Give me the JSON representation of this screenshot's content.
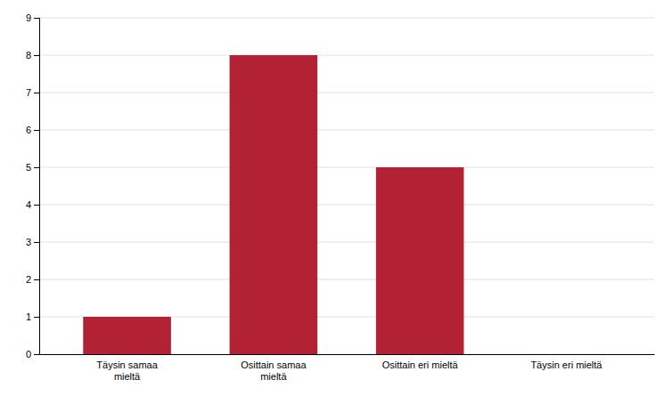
{
  "chart_data": {
    "type": "bar",
    "categories": [
      "Täysin samaa\nmieltä",
      "Osittain samaa\nmieltä",
      "Osittain eri mieltä",
      "Täysin eri mieltä"
    ],
    "values": [
      1,
      8,
      5,
      0
    ],
    "color": "#B22234",
    "ylim": [
      0,
      9
    ],
    "yticks": [
      0,
      1,
      2,
      3,
      4,
      5,
      6,
      7,
      8,
      9
    ],
    "grid": true
  }
}
